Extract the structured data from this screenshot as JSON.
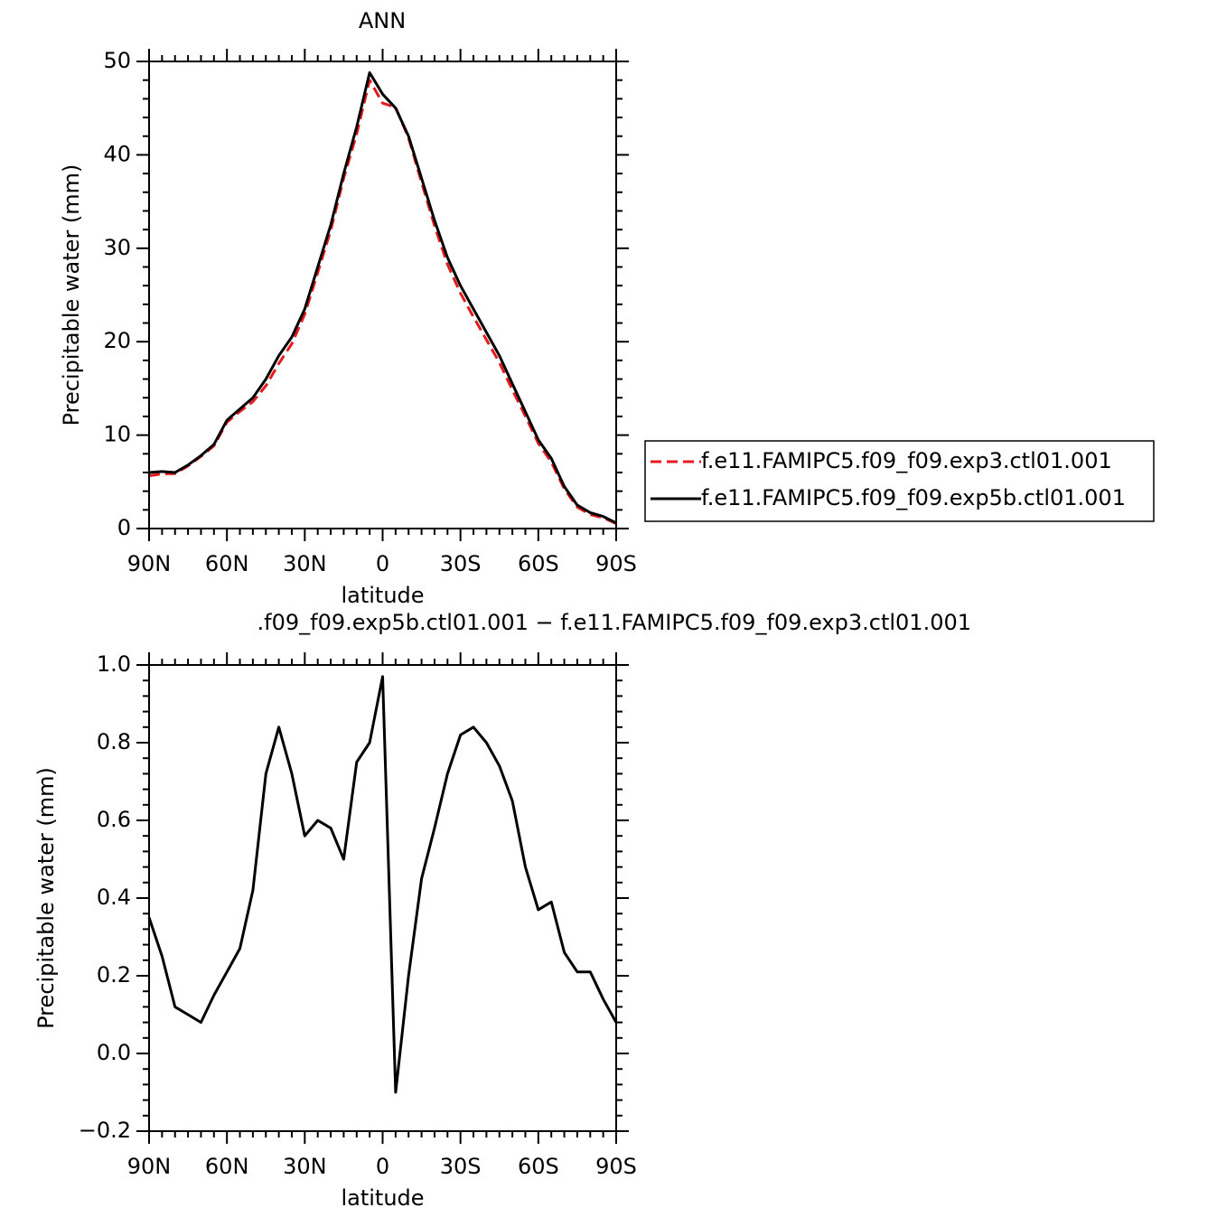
{
  "chart_data": [
    {
      "type": "line",
      "title": "ANN",
      "xlabel": "latitude",
      "ylabel": "Precipitable water (mm)",
      "x": [
        90,
        85,
        80,
        75,
        70,
        65,
        60,
        55,
        50,
        45,
        40,
        35,
        30,
        25,
        20,
        15,
        10,
        5,
        0,
        -5,
        -10,
        -15,
        -20,
        -25,
        -30,
        -35,
        -40,
        -45,
        -50,
        -55,
        -60,
        -65,
        -70,
        -75,
        -80,
        -85,
        -90
      ],
      "xlim": [
        90,
        -90
      ],
      "xticks": [
        {
          "value": 90,
          "label": "90N"
        },
        {
          "value": 60,
          "label": "60N"
        },
        {
          "value": 30,
          "label": "30N"
        },
        0,
        {
          "value": -30,
          "label": "30S"
        },
        {
          "value": -60,
          "label": "60S"
        },
        {
          "value": -90,
          "label": "90S"
        }
      ],
      "ylim": [
        0,
        50
      ],
      "yticks": [
        0,
        10,
        20,
        30,
        40,
        50
      ],
      "legend": "right",
      "series": [
        {
          "name": "f.e11.FAMIPC5.f09_f09.exp3.ctl01.001",
          "color": "#e41a1c",
          "line_style": "dashed",
          "values": [
            5.65,
            5.85,
            5.88,
            6.7,
            7.72,
            8.85,
            11.39,
            12.53,
            13.58,
            15.28,
            17.66,
            19.78,
            22.94,
            27.4,
            31.92,
            37.5,
            42.25,
            48.0,
            45.53,
            45.1,
            41.8,
            37.05,
            32.42,
            28.28,
            25.18,
            22.66,
            20.2,
            17.76,
            14.85,
            12.02,
            9.13,
            7.11,
            4.24,
            2.29,
            1.49,
            1.16,
            0.52
          ]
        },
        {
          "name": "f.e11.FAMIPC5.f09_f09.exp5b.ctl01.001",
          "color": "#000000",
          "line_style": "solid",
          "values": [
            6.0,
            6.1,
            6.0,
            6.8,
            7.8,
            9.0,
            11.6,
            12.8,
            14.0,
            16.0,
            18.5,
            20.5,
            23.5,
            28.0,
            32.5,
            38.0,
            43.0,
            48.8,
            46.5,
            45.0,
            42.0,
            37.5,
            33.0,
            29.0,
            26.0,
            23.5,
            21.0,
            18.5,
            15.5,
            12.5,
            9.5,
            7.5,
            4.5,
            2.5,
            1.7,
            1.3,
            0.6
          ]
        }
      ]
    },
    {
      "type": "line",
      "title": ".f09_f09.exp5b.ctl01.001 − f.e11.FAMIPC5.f09_f09.exp3.ctl01.001",
      "xlabel": "latitude",
      "ylabel": "Precipitable water (mm)",
      "x": [
        90,
        85,
        80,
        75,
        70,
        65,
        60,
        55,
        50,
        45,
        40,
        35,
        30,
        25,
        20,
        15,
        10,
        5,
        0,
        -5,
        -10,
        -15,
        -20,
        -25,
        -30,
        -35,
        -40,
        -45,
        -50,
        -55,
        -60,
        -65,
        -70,
        -75,
        -80,
        -85,
        -90
      ],
      "xlim": [
        90,
        -90
      ],
      "xticks": [
        {
          "value": 90,
          "label": "90N"
        },
        {
          "value": 60,
          "label": "60N"
        },
        {
          "value": 30,
          "label": "30N"
        },
        0,
        {
          "value": -30,
          "label": "30S"
        },
        {
          "value": -60,
          "label": "60S"
        },
        {
          "value": -90,
          "label": "90S"
        }
      ],
      "ylim": [
        -0.2,
        1.0
      ],
      "yticks": [
        {
          "value": -0.2,
          "label": "−0.2"
        },
        {
          "value": 0,
          "label": "0.0"
        },
        {
          "value": 0.2,
          "label": "0.2"
        },
        {
          "value": 0.4,
          "label": "0.4"
        },
        {
          "value": 0.6,
          "label": "0.6"
        },
        {
          "value": 0.8,
          "label": "0.8"
        },
        {
          "value": 1.0,
          "label": "1.0"
        }
      ],
      "series": [
        {
          "color": "#000000",
          "line_style": "solid",
          "values": [
            0.35,
            0.25,
            0.12,
            0.1,
            0.08,
            0.15,
            0.21,
            0.27,
            0.42,
            0.72,
            0.84,
            0.72,
            0.56,
            0.6,
            0.58,
            0.5,
            0.75,
            0.8,
            0.97,
            -0.1,
            0.2,
            0.45,
            0.58,
            0.72,
            0.82,
            0.84,
            0.8,
            0.74,
            0.65,
            0.48,
            0.37,
            0.39,
            0.26,
            0.21,
            0.21,
            0.14,
            0.08
          ]
        }
      ]
    }
  ]
}
